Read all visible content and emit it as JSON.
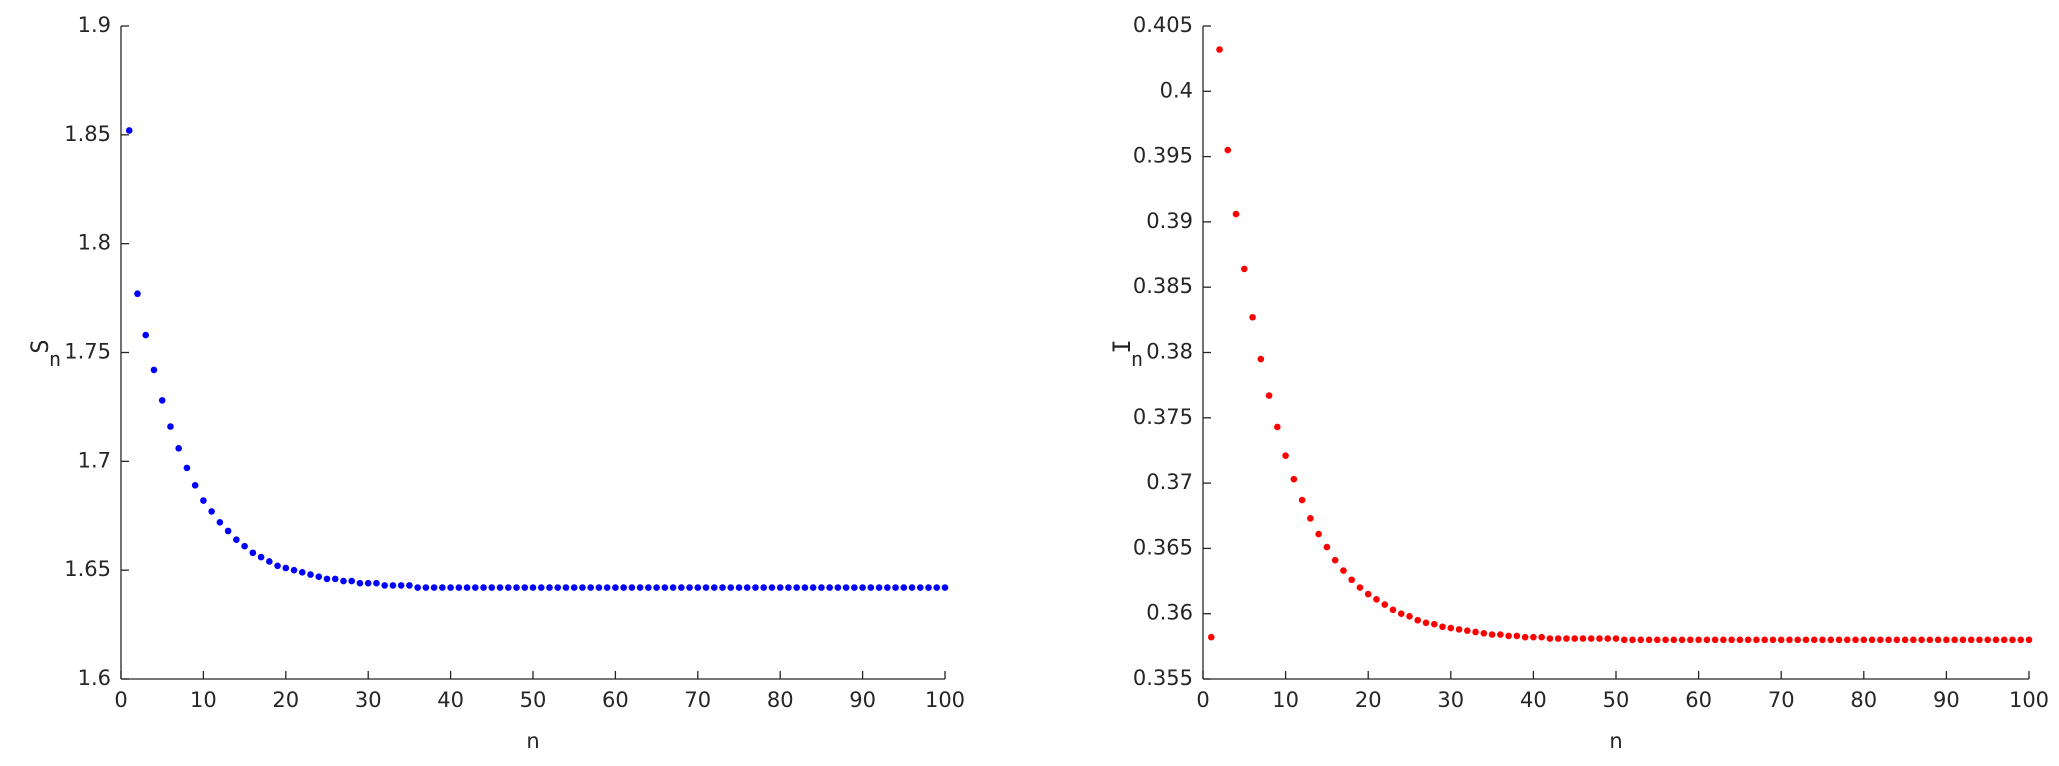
{
  "chart_data": [
    {
      "type": "scatter",
      "ylabel": {
        "text": "S",
        "sub": "n"
      },
      "xlabel": "n",
      "color": "#0000ff",
      "x": [
        1,
        2,
        3,
        4,
        5,
        6,
        7,
        8,
        9,
        10,
        11,
        12,
        13,
        14,
        15,
        16,
        17,
        18,
        19,
        20,
        21,
        22,
        23,
        24,
        25,
        26,
        27,
        28,
        29,
        30,
        31,
        32,
        33,
        34,
        35,
        36,
        37,
        38,
        39,
        40,
        41,
        42,
        43,
        44,
        45,
        46,
        47,
        48,
        49,
        50,
        51,
        52,
        53,
        54,
        55,
        56,
        57,
        58,
        59,
        60,
        61,
        62,
        63,
        64,
        65,
        66,
        67,
        68,
        69,
        70,
        71,
        72,
        73,
        74,
        75,
        76,
        77,
        78,
        79,
        80,
        81,
        82,
        83,
        84,
        85,
        86,
        87,
        88,
        89,
        90,
        91,
        92,
        93,
        94,
        95,
        96,
        97,
        98,
        99,
        100
      ],
      "values": [
        1.852,
        1.777,
        1.758,
        1.742,
        1.728,
        1.716,
        1.706,
        1.697,
        1.689,
        1.682,
        1.677,
        1.672,
        1.668,
        1.664,
        1.661,
        1.658,
        1.656,
        1.654,
        1.652,
        1.651,
        1.65,
        1.649,
        1.648,
        1.647,
        1.646,
        1.646,
        1.645,
        1.645,
        1.644,
        1.644,
        1.644,
        1.643,
        1.643,
        1.643,
        1.643,
        1.642,
        1.642,
        1.642,
        1.642,
        1.642,
        1.642,
        1.642,
        1.642,
        1.642,
        1.642,
        1.642,
        1.642,
        1.642,
        1.642,
        1.642,
        1.642,
        1.642,
        1.642,
        1.642,
        1.642,
        1.642,
        1.642,
        1.642,
        1.642,
        1.642,
        1.642,
        1.642,
        1.642,
        1.642,
        1.642,
        1.642,
        1.642,
        1.642,
        1.642,
        1.642,
        1.642,
        1.642,
        1.642,
        1.642,
        1.642,
        1.642,
        1.642,
        1.642,
        1.642,
        1.642,
        1.642,
        1.642,
        1.642,
        1.642,
        1.642,
        1.642,
        1.642,
        1.642,
        1.642,
        1.642,
        1.642,
        1.642,
        1.642,
        1.642,
        1.642,
        1.642,
        1.642,
        1.642,
        1.642,
        1.642
      ],
      "xlim": [
        0,
        100
      ],
      "xticks": [
        0,
        10,
        20,
        30,
        40,
        50,
        60,
        70,
        80,
        90,
        100
      ],
      "ylim": [
        1.6,
        1.9
      ],
      "yticks": [
        1.6,
        1.65,
        1.7,
        1.75,
        1.8,
        1.85,
        1.9
      ]
    },
    {
      "type": "scatter",
      "ylabel": {
        "text": "I",
        "sub": "n"
      },
      "xlabel": "n",
      "color": "#ff0000",
      "x": [
        1,
        2,
        3,
        4,
        5,
        6,
        7,
        8,
        9,
        10,
        11,
        12,
        13,
        14,
        15,
        16,
        17,
        18,
        19,
        20,
        21,
        22,
        23,
        24,
        25,
        26,
        27,
        28,
        29,
        30,
        31,
        32,
        33,
        34,
        35,
        36,
        37,
        38,
        39,
        40,
        41,
        42,
        43,
        44,
        45,
        46,
        47,
        48,
        49,
        50,
        51,
        52,
        53,
        54,
        55,
        56,
        57,
        58,
        59,
        60,
        61,
        62,
        63,
        64,
        65,
        66,
        67,
        68,
        69,
        70,
        71,
        72,
        73,
        74,
        75,
        76,
        77,
        78,
        79,
        80,
        81,
        82,
        83,
        84,
        85,
        86,
        87,
        88,
        89,
        90,
        91,
        92,
        93,
        94,
        95,
        96,
        97,
        98,
        99,
        100
      ],
      "values": [
        0.3582,
        0.4032,
        0.3955,
        0.3906,
        0.3864,
        0.3827,
        0.3795,
        0.3767,
        0.3743,
        0.3721,
        0.3703,
        0.3687,
        0.3673,
        0.3661,
        0.3651,
        0.3641,
        0.3633,
        0.3626,
        0.362,
        0.3615,
        0.3611,
        0.3607,
        0.3603,
        0.36,
        0.3598,
        0.3595,
        0.3593,
        0.3592,
        0.359,
        0.3589,
        0.3588,
        0.3587,
        0.3586,
        0.3585,
        0.3584,
        0.3584,
        0.3583,
        0.3583,
        0.3582,
        0.3582,
        0.3582,
        0.3581,
        0.3581,
        0.3581,
        0.3581,
        0.3581,
        0.3581,
        0.3581,
        0.3581,
        0.3581,
        0.358,
        0.358,
        0.358,
        0.358,
        0.358,
        0.358,
        0.358,
        0.358,
        0.358,
        0.358,
        0.358,
        0.358,
        0.358,
        0.358,
        0.358,
        0.358,
        0.358,
        0.358,
        0.358,
        0.358,
        0.358,
        0.358,
        0.358,
        0.358,
        0.358,
        0.358,
        0.358,
        0.358,
        0.358,
        0.358,
        0.358,
        0.358,
        0.358,
        0.358,
        0.358,
        0.358,
        0.358,
        0.358,
        0.358,
        0.358,
        0.358,
        0.358,
        0.358,
        0.358,
        0.358,
        0.358,
        0.358,
        0.358,
        0.358,
        0.358
      ],
      "xlim": [
        0,
        100
      ],
      "xticks": [
        0,
        10,
        20,
        30,
        40,
        50,
        60,
        70,
        80,
        90,
        100
      ],
      "ylim": [
        0.355,
        0.405
      ],
      "yticks": [
        0.355,
        0.36,
        0.365,
        0.37,
        0.375,
        0.38,
        0.385,
        0.39,
        0.395,
        0.4,
        0.405
      ]
    }
  ]
}
